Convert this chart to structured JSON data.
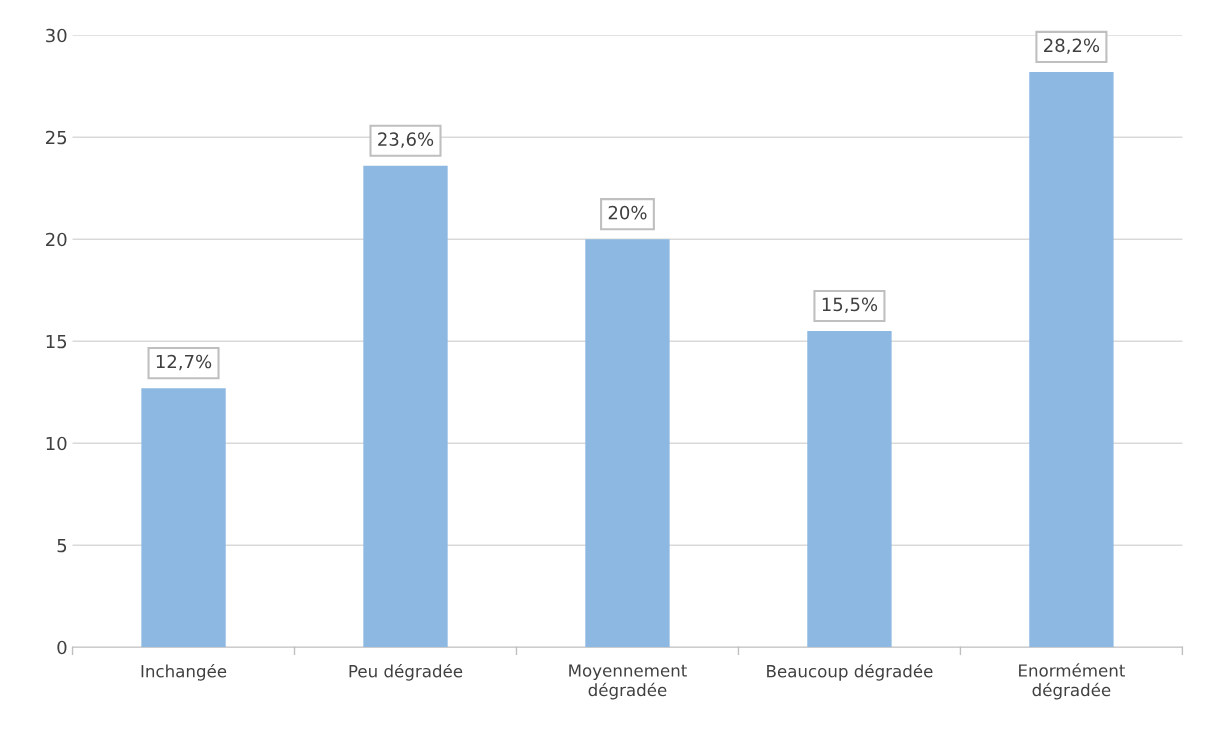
{
  "chart_data": {
    "type": "bar",
    "categories": [
      "Inchangée",
      "Peu dégradée",
      "Moyennement\ndégradée",
      "Beaucoup dégradée",
      "Enormément\ndégradée"
    ],
    "values": [
      12.7,
      23.6,
      20,
      15.5,
      28.2
    ],
    "value_labels": [
      "12,7%",
      "23,6%",
      "20%",
      "15,5%",
      "28,2%"
    ],
    "color": "#8db8e2",
    "ylim": [
      0,
      30
    ],
    "yticks": [
      0,
      5,
      10,
      15,
      20,
      25,
      30
    ],
    "grid": "y",
    "legend": false
  }
}
